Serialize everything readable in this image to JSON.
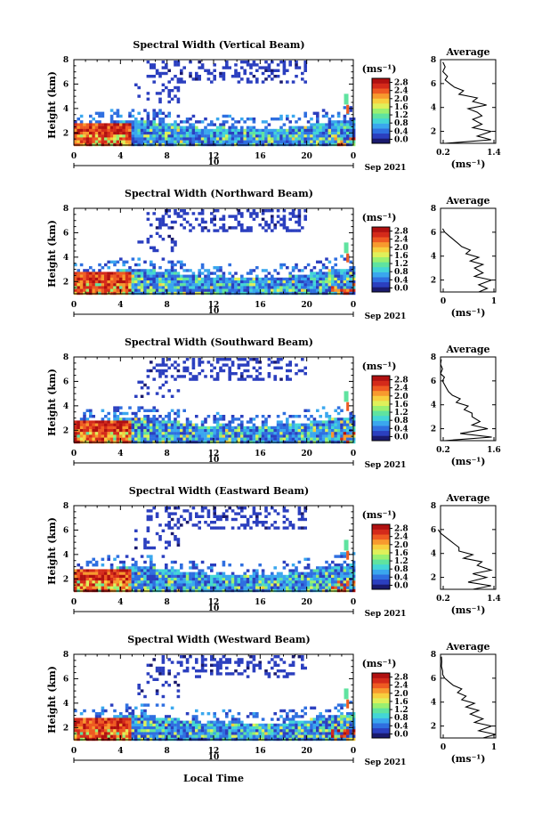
{
  "footer": {
    "xlabel": "Local Time"
  },
  "colorbar": {
    "unit": "(ms⁻¹)",
    "ticks": [
      "0.0",
      "0.4",
      "0.8",
      "1.2",
      "1.6",
      "2.0",
      "2.4",
      "2.8"
    ],
    "colors": [
      "#1a1a6e",
      "#2b3fbf",
      "#2f6fe0",
      "#3aa7ee",
      "#43d6d6",
      "#5fe3a0",
      "#9af070",
      "#dff05a",
      "#f7cf3e",
      "#f79a2e",
      "#ee5a22",
      "#d42a1a",
      "#b01010"
    ]
  },
  "chart_data": [
    {
      "type": "heatmap",
      "title": "Spectral Width (Vertical Beam)",
      "ylabel": "Height (km)",
      "xlabel": "Local Time",
      "x_ticks": [
        "0",
        "4",
        "8",
        "12",
        "16",
        "20",
        "0"
      ],
      "date_tick": "10",
      "month_label": "Sep 2021",
      "y_ticks": [
        "2",
        "4",
        "6",
        "8"
      ],
      "xlim": [
        0,
        24
      ],
      "ylim": [
        1,
        8
      ],
      "profile": {
        "title": "Average",
        "xlabel": "(ms⁻¹)",
        "x_ticks": [
          "0.2",
          "1.4"
        ],
        "xlim": [
          0.2,
          1.4
        ],
        "y_ticks": [
          "2",
          "4",
          "6",
          "8"
        ],
        "height": [
          1.0,
          1.3,
          1.6,
          2.0,
          2.3,
          2.6,
          3.0,
          3.3,
          3.6,
          3.9,
          4.2,
          4.5,
          4.8,
          5.1,
          5.4,
          5.7,
          6.0,
          6.3,
          6.6,
          7.0,
          7.4,
          7.8
        ],
        "value": [
          0.3,
          1.3,
          1.0,
          1.3,
          0.9,
          1.1,
          0.9,
          1.1,
          1.0,
          0.8,
          1.2,
          0.9,
          1.0,
          0.6,
          0.7,
          0.5,
          0.4,
          0.3,
          0.35,
          0.25,
          0.3,
          0.25
        ]
      }
    },
    {
      "type": "heatmap",
      "title": "Spectral Width (Northward Beam)",
      "ylabel": "Height (km)",
      "xlabel": "Local Time",
      "x_ticks": [
        "0",
        "4",
        "8",
        "12",
        "16",
        "20",
        "0"
      ],
      "date_tick": "10",
      "month_label": "Sep 2021",
      "y_ticks": [
        "2",
        "4",
        "6",
        "8"
      ],
      "xlim": [
        0,
        24
      ],
      "ylim": [
        1,
        8
      ],
      "profile": {
        "title": "Average",
        "xlabel": "(ms⁻¹)",
        "x_ticks": [
          "0",
          "1"
        ],
        "xlim": [
          0,
          1.3
        ],
        "y_ticks": [
          "2",
          "4",
          "6",
          "8"
        ],
        "height": [
          1.0,
          1.3,
          1.6,
          2.0,
          2.3,
          2.6,
          3.0,
          3.3,
          3.6,
          3.9,
          4.2,
          4.5,
          4.8,
          5.1,
          5.4,
          5.7,
          6.0,
          6.3
        ],
        "value": [
          0.9,
          1.1,
          0.9,
          1.2,
          0.8,
          1.0,
          0.8,
          1.0,
          0.7,
          0.9,
          0.6,
          0.7,
          0.5,
          0.4,
          0.3,
          0.2,
          0.1,
          0.05
        ]
      }
    },
    {
      "type": "heatmap",
      "title": "Spectral Width (Southward Beam)",
      "ylabel": "Height (km)",
      "xlabel": "Local Time",
      "x_ticks": [
        "0",
        "4",
        "8",
        "12",
        "16",
        "20",
        "0"
      ],
      "date_tick": "10",
      "month_label": "Sep 2021",
      "y_ticks": [
        "2",
        "4",
        "6",
        "8"
      ],
      "xlim": [
        0,
        24
      ],
      "ylim": [
        1,
        8
      ],
      "profile": {
        "title": "Average",
        "xlabel": "(ms⁻¹)",
        "x_ticks": [
          "0.2",
          "1.6"
        ],
        "xlim": [
          0.2,
          1.6
        ],
        "y_ticks": [
          "2",
          "4",
          "6",
          "8"
        ],
        "height": [
          1.0,
          1.3,
          1.6,
          2.0,
          2.3,
          2.6,
          3.0,
          3.3,
          3.6,
          3.9,
          4.2,
          4.5,
          4.8,
          5.1,
          5.4,
          5.7,
          6.0,
          6.3,
          6.6,
          7.0,
          7.4,
          7.8
        ],
        "value": [
          0.3,
          1.5,
          0.7,
          1.4,
          1.0,
          1.2,
          1.0,
          1.0,
          0.8,
          0.9,
          0.6,
          0.7,
          0.5,
          0.4,
          0.35,
          0.3,
          0.25,
          0.3,
          0.2,
          0.25,
          0.2,
          0.22
        ]
      }
    },
    {
      "type": "heatmap",
      "title": "Spectral Width (Eastward Beam)",
      "ylabel": "Height (km)",
      "xlabel": "Local Time",
      "x_ticks": [
        "0",
        "4",
        "8",
        "12",
        "16",
        "20",
        "0"
      ],
      "date_tick": "10",
      "month_label": "Sep 2021",
      "y_ticks": [
        "2",
        "4",
        "6",
        "8"
      ],
      "xlim": [
        0,
        24
      ],
      "ylim": [
        1,
        8
      ],
      "profile": {
        "title": "Average",
        "xlabel": "(ms⁻¹)",
        "x_ticks": [
          "0.2",
          "1.4"
        ],
        "xlim": [
          0.2,
          1.4
        ],
        "y_ticks": [
          "2",
          "4",
          "6",
          "8"
        ],
        "height": [
          1.0,
          1.3,
          1.6,
          2.0,
          2.3,
          2.6,
          3.0,
          3.3,
          3.6,
          3.9,
          4.2,
          4.5,
          4.8,
          5.1,
          5.4,
          5.7,
          6.0
        ],
        "value": [
          0.9,
          1.3,
          0.8,
          1.2,
          0.9,
          1.3,
          1.0,
          1.1,
          0.7,
          0.9,
          0.6,
          0.6,
          0.5,
          0.4,
          0.3,
          0.2,
          0.15
        ]
      }
    },
    {
      "type": "heatmap",
      "title": "Spectral Width (Westward Beam)",
      "ylabel": "Height (km)",
      "xlabel": "Local Time",
      "x_ticks": [
        "0",
        "4",
        "8",
        "12",
        "16",
        "20",
        "0"
      ],
      "date_tick": "10",
      "month_label": "Sep 2021",
      "y_ticks": [
        "2",
        "4",
        "6",
        "8"
      ],
      "xlim": [
        0,
        24
      ],
      "ylim": [
        1,
        8
      ],
      "profile": {
        "title": "Average",
        "xlabel": "(ms⁻¹)",
        "x_ticks": [
          "0",
          "1"
        ],
        "xlim": [
          0,
          1.3
        ],
        "y_ticks": [
          "2",
          "4",
          "6",
          "8"
        ],
        "height": [
          1.0,
          1.3,
          1.6,
          2.0,
          2.3,
          2.6,
          3.0,
          3.3,
          3.6,
          3.9,
          4.2,
          4.5,
          4.8,
          5.1,
          5.4,
          5.7,
          6.0,
          6.3,
          6.6,
          7.0,
          7.4,
          7.8
        ],
        "value": [
          1.0,
          1.3,
          0.9,
          1.2,
          0.8,
          1.0,
          0.7,
          0.9,
          0.6,
          0.8,
          0.5,
          0.6,
          0.4,
          0.5,
          0.3,
          0.2,
          0.1,
          0.05,
          0.05,
          0.02,
          0.03,
          0.02
        ]
      }
    }
  ]
}
